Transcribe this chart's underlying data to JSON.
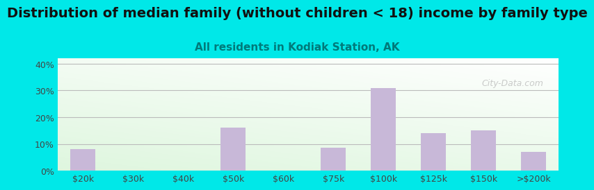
{
  "title": "Distribution of median family (without children < 18) income by family type",
  "subtitle": "All residents in Kodiak Station, AK",
  "categories": [
    "$20k",
    "$30k",
    "$40k",
    "$50k",
    "$60k",
    "$75k",
    "$100k",
    "$125k",
    "$150k",
    ">$200k"
  ],
  "values": [
    8.0,
    0.0,
    0.0,
    16.0,
    0.0,
    8.5,
    31.0,
    14.0,
    15.0,
    7.0
  ],
  "bar_color": "#c8b8d8",
  "background_outer": "#00e8e8",
  "ylim": [
    0,
    42
  ],
  "yticks": [
    0,
    10,
    20,
    30,
    40
  ],
  "ytick_labels": [
    "0%",
    "10%",
    "20%",
    "30%",
    "40%"
  ],
  "title_fontsize": 14,
  "subtitle_fontsize": 11,
  "subtitle_color": "#007a7a",
  "title_color": "#111111",
  "axis_label_color": "#444444",
  "grid_color": "#bbbbbb",
  "watermark": "City-Data.com"
}
